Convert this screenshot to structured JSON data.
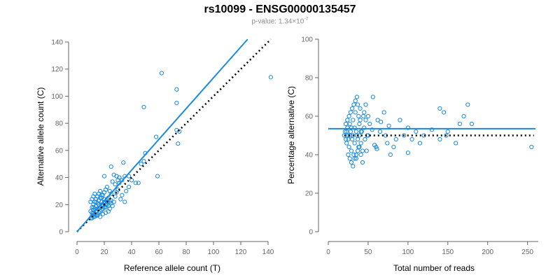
{
  "title": "rs10099 - ENSG00000135457",
  "subtitle": {
    "prefix": "p-value: 1.34×10",
    "exponent": "-7"
  },
  "colors": {
    "accent": "#1a8ae0",
    "reference_line": "#000000",
    "axis": "#666666"
  },
  "chart_data": [
    {
      "type": "scatter",
      "xlabel": "Reference allele count (T)",
      "ylabel": "Alternative allele count (C)",
      "xlim": [
        0,
        140
      ],
      "ylim": [
        0,
        140
      ],
      "xticks": [
        "0",
        "20",
        "40",
        "60",
        "80",
        "100",
        "120",
        "140"
      ],
      "yticks": [
        "0",
        "20",
        "40",
        "60",
        "80",
        "100",
        "120",
        "140"
      ],
      "grid": false,
      "points": [
        [
          10,
          10
        ],
        [
          11,
          12
        ],
        [
          12,
          11
        ],
        [
          12,
          14
        ],
        [
          13,
          13
        ],
        [
          14,
          15
        ],
        [
          15,
          13
        ],
        [
          16,
          17
        ],
        [
          17,
          18
        ],
        [
          18,
          16
        ],
        [
          19,
          19
        ],
        [
          20,
          21
        ],
        [
          21,
          18
        ],
        [
          22,
          22
        ],
        [
          23,
          25
        ],
        [
          25,
          23
        ],
        [
          10,
          15
        ],
        [
          11,
          18
        ],
        [
          12,
          20
        ],
        [
          13,
          22
        ],
        [
          14,
          24
        ],
        [
          15,
          26
        ],
        [
          16,
          28
        ],
        [
          17,
          30
        ],
        [
          18,
          25
        ],
        [
          19,
          27
        ],
        [
          20,
          29
        ],
        [
          21,
          31
        ],
        [
          22,
          24
        ],
        [
          10,
          22
        ],
        [
          11,
          24
        ],
        [
          12,
          26
        ],
        [
          13,
          28
        ],
        [
          14,
          19
        ],
        [
          15,
          21
        ],
        [
          16,
          23
        ],
        [
          17,
          25
        ],
        [
          18,
          27
        ],
        [
          19,
          20
        ],
        [
          20,
          22
        ],
        [
          11,
          10
        ],
        [
          13,
          11
        ],
        [
          15,
          12
        ],
        [
          17,
          11
        ],
        [
          19,
          13
        ],
        [
          21,
          14
        ],
        [
          23,
          15
        ],
        [
          24,
          17
        ],
        [
          26,
          19
        ],
        [
          27,
          22
        ],
        [
          25,
          28
        ],
        [
          24,
          30
        ],
        [
          22,
          33
        ],
        [
          28,
          26
        ],
        [
          29,
          29
        ],
        [
          30,
          31
        ],
        [
          32,
          24
        ],
        [
          33,
          27
        ],
        [
          35,
          22
        ],
        [
          36,
          30
        ],
        [
          38,
          33
        ],
        [
          30,
          38
        ],
        [
          28,
          35
        ],
        [
          26,
          37
        ],
        [
          31,
          36
        ],
        [
          33,
          38
        ],
        [
          35,
          41
        ],
        [
          25,
          48
        ],
        [
          27,
          42
        ],
        [
          29,
          41
        ],
        [
          31,
          40
        ],
        [
          20,
          41
        ],
        [
          34,
          51
        ],
        [
          38,
          41
        ],
        [
          40,
          38
        ],
        [
          43,
          36
        ],
        [
          45,
          36
        ],
        [
          47,
          50
        ],
        [
          49,
          52
        ],
        [
          50,
          58
        ],
        [
          58,
          70
        ],
        [
          59,
          41
        ],
        [
          62,
          117
        ],
        [
          49,
          92
        ],
        [
          73,
          105
        ],
        [
          73,
          95
        ],
        [
          73,
          75
        ],
        [
          75,
          74
        ],
        [
          74,
          65
        ],
        [
          142,
          114
        ],
        [
          12,
          16
        ],
        [
          14,
          12
        ],
        [
          16,
          14
        ],
        [
          18,
          20
        ],
        [
          20,
          18
        ],
        [
          22,
          20
        ],
        [
          24,
          22
        ],
        [
          12,
          18
        ],
        [
          14,
          22
        ],
        [
          16,
          20
        ],
        [
          18,
          22
        ],
        [
          20,
          24
        ],
        [
          15,
          17
        ],
        [
          17,
          15
        ],
        [
          13,
          17
        ],
        [
          11,
          14
        ],
        [
          19,
          17
        ],
        [
          21,
          20
        ],
        [
          23,
          19
        ],
        [
          25,
          21
        ]
      ],
      "fit_line": {
        "x": [
          0,
          125
        ],
        "y": [
          0,
          142
        ]
      },
      "reference_line": {
        "x": [
          0,
          142
        ],
        "y": [
          0,
          142
        ],
        "style": "dotted"
      }
    },
    {
      "type": "scatter",
      "xlabel": "Total number of reads",
      "ylabel": "Percentage alternative (C)",
      "xlim": [
        0,
        260
      ],
      "ylim": [
        0,
        100
      ],
      "xticks": [
        "0",
        "50",
        "100",
        "150",
        "200",
        "250"
      ],
      "yticks": [
        "0",
        "20",
        "40",
        "60",
        "80",
        "100"
      ],
      "grid": false,
      "points": [
        [
          20,
          50
        ],
        [
          21,
          52
        ],
        [
          22,
          48
        ],
        [
          23,
          46
        ],
        [
          24,
          54
        ],
        [
          25,
          50
        ],
        [
          26,
          44
        ],
        [
          27,
          56
        ],
        [
          28,
          52
        ],
        [
          29,
          42
        ],
        [
          30,
          48
        ],
        [
          31,
          58
        ],
        [
          32,
          40
        ],
        [
          33,
          54
        ],
        [
          34,
          62
        ],
        [
          35,
          38
        ],
        [
          36,
          50
        ],
        [
          37,
          66
        ],
        [
          38,
          44
        ],
        [
          39,
          56
        ],
        [
          40,
          64
        ],
        [
          41,
          46
        ],
        [
          42,
          52
        ],
        [
          43,
          36
        ],
        [
          44,
          60
        ],
        [
          45,
          54
        ],
        [
          46,
          48
        ],
        [
          47,
          58
        ],
        [
          48,
          42
        ],
        [
          49,
          50
        ],
        [
          22,
          56
        ],
        [
          24,
          58
        ],
        [
          26,
          60
        ],
        [
          28,
          62
        ],
        [
          30,
          64
        ],
        [
          32,
          66
        ],
        [
          34,
          68
        ],
        [
          36,
          70
        ],
        [
          38,
          60
        ],
        [
          40,
          58
        ],
        [
          25,
          40
        ],
        [
          27,
          38
        ],
        [
          29,
          36
        ],
        [
          31,
          34
        ],
        [
          33,
          38
        ],
        [
          35,
          40
        ],
        [
          37,
          42
        ],
        [
          39,
          44
        ],
        [
          41,
          40
        ],
        [
          43,
          42
        ],
        [
          23,
          52
        ],
        [
          25,
          48
        ],
        [
          27,
          50
        ],
        [
          29,
          54
        ],
        [
          31,
          50
        ],
        [
          33,
          46
        ],
        [
          35,
          52
        ],
        [
          37,
          48
        ],
        [
          39,
          50
        ],
        [
          41,
          52
        ],
        [
          45,
          62
        ],
        [
          47,
          66
        ],
        [
          50,
          60
        ],
        [
          50,
          50
        ],
        [
          52,
          56
        ],
        [
          55,
          53
        ],
        [
          58,
          45
        ],
        [
          60,
          44
        ],
        [
          62,
          58
        ],
        [
          65,
          52
        ],
        [
          70,
          62
        ],
        [
          72,
          50
        ],
        [
          74,
          46
        ],
        [
          78,
          40
        ],
        [
          82,
          44
        ],
        [
          90,
          58
        ],
        [
          100,
          54
        ],
        [
          105,
          48
        ],
        [
          110,
          52
        ],
        [
          115,
          46
        ],
        [
          130,
          53
        ],
        [
          140,
          48
        ],
        [
          150,
          52
        ],
        [
          160,
          46
        ],
        [
          170,
          60
        ],
        [
          175,
          66
        ],
        [
          180,
          56
        ],
        [
          140,
          64
        ],
        [
          120,
          50
        ],
        [
          100,
          41
        ],
        [
          145,
          62
        ],
        [
          148,
          50
        ],
        [
          165,
          56
        ],
        [
          255,
          44
        ],
        [
          95,
          50
        ],
        [
          85,
          48
        ],
        [
          76,
          55
        ],
        [
          66,
          57
        ],
        [
          56,
          70
        ],
        [
          61,
          43
        ]
      ],
      "mean_line": {
        "y": 53.5
      },
      "reference_line": {
        "y": 50,
        "style": "dotted"
      }
    }
  ]
}
